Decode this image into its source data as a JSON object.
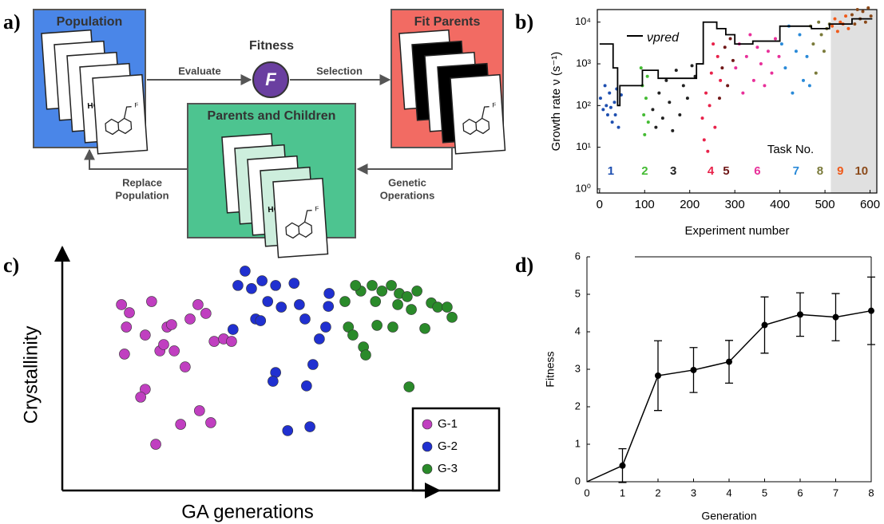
{
  "diagram": {
    "label": "a)",
    "population": "Population",
    "fitness": "Fitness",
    "fitness_symbol": "F",
    "fit_parents": "Fit Parents",
    "parents_children": "Parents and Children",
    "evaluate": "Evaluate",
    "selection": "Selection",
    "genetic_operations": [
      "Genetic",
      "Operations"
    ],
    "replace_population": [
      "Replace",
      "Population"
    ],
    "molecule_labels": [
      "HO",
      "F"
    ]
  },
  "chart_data": [
    {
      "type": "scatter",
      "label": "b)",
      "ylabel": "Growth rate ν (s⁻¹)",
      "xlabel": "Experiment number",
      "annotation": "Task No.",
      "log_y": true,
      "xlim": [
        -5,
        615
      ],
      "ylim": [
        0.8,
        20000
      ],
      "xticks": [
        0,
        100,
        200,
        300,
        400,
        500,
        600
      ],
      "yticks": [
        {
          "value": 1,
          "label": "10⁰"
        },
        {
          "value": 10,
          "label": "10¹"
        },
        {
          "value": 100,
          "label": "10²"
        },
        {
          "value": 1000,
          "label": "10³"
        },
        {
          "value": 10000,
          "label": "10⁴"
        }
      ],
      "highlight": [
        513,
        615
      ],
      "highlight_color": "#e0e0e0",
      "series": [
        {
          "name": "1",
          "color": "#1e4fb0",
          "x": [
            2,
            8,
            12,
            18,
            22,
            28,
            33,
            38,
            42,
            48,
            15,
            25,
            35
          ],
          "values": [
            150,
            80,
            300,
            60,
            200,
            40,
            120,
            250,
            30,
            180,
            100,
            90,
            60
          ]
        },
        {
          "name": "2",
          "color": "#44bb33",
          "x": [
            92,
            95,
            98,
            100,
            103,
            106,
            108
          ],
          "values": [
            800,
            300,
            60,
            20,
            150,
            500,
            40
          ]
        },
        {
          "name": "3",
          "color": "#222222",
          "x": [
            118,
            125,
            132,
            140,
            148,
            155,
            162,
            170,
            178,
            186,
            195,
            205,
            212
          ],
          "values": [
            80,
            30,
            200,
            50,
            400,
            120,
            25,
            700,
            60,
            300,
            150,
            900,
            500
          ]
        },
        {
          "name": "4",
          "color": "#e8224a",
          "x": [
            228,
            232,
            236,
            240,
            244,
            248,
            252,
            256,
            262,
            268
          ],
          "values": [
            50,
            15,
            200,
            8,
            100,
            600,
            3000,
            30,
            1500,
            400
          ]
        },
        {
          "name": "5",
          "color": "#701818",
          "x": [
            266,
            272,
            278,
            284,
            290,
            296
          ],
          "values": [
            150,
            800,
            2500,
            300,
            4000,
            1200
          ]
        },
        {
          "name": "6",
          "color": "#e8309a",
          "x": [
            302,
            310,
            318,
            326,
            334,
            342,
            350,
            358,
            366,
            374,
            382,
            390,
            398
          ],
          "values": [
            800,
            3000,
            200,
            1500,
            5000,
            400,
            2500,
            1000,
            300,
            2000,
            600,
            4000,
            1500
          ]
        },
        {
          "name": "7",
          "color": "#2a8ad8",
          "x": [
            404,
            412,
            420,
            428,
            436,
            444,
            452,
            460,
            466
          ],
          "values": [
            3000,
            800,
            8000,
            200,
            2000,
            5000,
            400,
            1500,
            300
          ]
        },
        {
          "name": "8",
          "color": "#7a7a3a",
          "x": [
            468,
            474,
            480,
            486,
            492,
            498,
            504,
            510
          ],
          "values": [
            8000,
            3000,
            600,
            10000,
            5000,
            2000,
            7000,
            9000
          ]
        },
        {
          "name": "9",
          "color": "#f05a1a",
          "x": [
            516,
            522,
            528,
            534,
            540,
            546,
            552
          ],
          "values": [
            8000,
            12000,
            6000,
            10000,
            9000,
            14000,
            7000
          ]
        },
        {
          "name": "10",
          "color": "#8b4a1a",
          "x": [
            560,
            566,
            572,
            578,
            584,
            590,
            596,
            602
          ],
          "values": [
            15000,
            9000,
            20000,
            12000,
            18000,
            10000,
            22000,
            14000
          ]
        }
      ],
      "line": {
        "name": "νpred",
        "color": "#000000",
        "x": [
          0,
          30,
          30,
          40,
          40,
          45,
          45,
          95,
          95,
          130,
          130,
          215,
          215,
          230,
          230,
          260,
          260,
          280,
          280,
          300,
          300,
          340,
          340,
          400,
          400,
          470,
          470,
          510,
          510,
          560,
          560,
          605
        ],
        "values": [
          3000,
          3000,
          800,
          800,
          100,
          100,
          300,
          300,
          700,
          700,
          450,
          450,
          1000,
          1000,
          10000,
          10000,
          7000,
          7000,
          5000,
          5000,
          3000,
          3000,
          3500,
          3500,
          8000,
          8000,
          7000,
          7000,
          9000,
          9000,
          12000,
          12000
        ]
      }
    },
    {
      "type": "scatter",
      "label": "c)",
      "ylabel": "Crystallinity",
      "xlabel": "GA generations",
      "xlim": [
        0,
        100
      ],
      "ylim": [
        0,
        100
      ],
      "series": [
        {
          "name": "G-1",
          "color": "#c03fc0",
          "x": [
            15.7,
            17.8,
            23.7,
            17.0,
            22.0,
            27.8,
            29.0,
            33.9,
            36.0,
            38.1,
            25.9,
            26.9,
            29.7,
            32.6,
            16.5,
            22.0,
            20.8,
            31.4,
            36.4,
            39.4,
            24.8,
            40.3,
            42.8,
            44.9
          ],
          "values": [
            76.4,
            73.1,
            77.7,
            67.2,
            63.9,
            67.2,
            68.2,
            70.5,
            76.4,
            72.8,
            57.4,
            60.0,
            57.4,
            50.8,
            56.1,
            41.6,
            38.4,
            27.2,
            32.8,
            27.9,
            19.0,
            61.3,
            62.3,
            61.3
          ]
        },
        {
          "name": "G-2",
          "color": "#2030d0",
          "x": [
            48.5,
            46.6,
            50.2,
            53.0,
            56.6,
            61.5,
            54.5,
            58.1,
            62.9,
            64.4,
            51.3,
            52.6,
            45.3,
            69.9,
            68.2,
            56.6,
            55.9,
            64.8,
            66.5,
            59.8,
            65.7,
            70.8,
            70.6
          ],
          "values": [
            90.2,
            84.3,
            83.0,
            86.2,
            84.3,
            85.2,
            77.7,
            75.4,
            76.4,
            70.5,
            70.5,
            69.8,
            66.2,
            67.2,
            62.3,
            48.5,
            44.9,
            43.0,
            51.8,
            24.6,
            26.2,
            81.0,
            75.7
          ]
        },
        {
          "name": "G-3",
          "color": "#2a8a2a",
          "x": [
            75.0,
            79.2,
            82.2,
            84.8,
            87.3,
            89.4,
            91.5,
            94.1,
            97.9,
            99.6,
            102.1,
            103.4,
            92.6,
            89.0,
            83.1,
            75.9,
            77.1,
            79.9,
            80.5,
            83.5,
            87.7,
            96.2,
            92.0,
            77.8
          ],
          "values": [
            77.7,
            82.0,
            84.3,
            82.0,
            84.3,
            81.0,
            79.7,
            82.0,
            77.1,
            75.4,
            75.4,
            71.2,
            74.4,
            76.4,
            77.7,
            67.2,
            63.9,
            59.0,
            55.7,
            67.9,
            67.2,
            66.6,
            42.6,
            84.3
          ]
        }
      ]
    },
    {
      "type": "line",
      "label": "d)",
      "ylabel": "Fitness",
      "xlabel": "Generation",
      "xlim": [
        0,
        8
      ],
      "ylim": [
        0,
        6
      ],
      "xticks": [
        0,
        1,
        2,
        3,
        4,
        5,
        6,
        7,
        8
      ],
      "yticks": [
        0,
        1,
        2,
        3,
        4,
        5,
        6
      ],
      "color": "#000000",
      "x": [
        0,
        1,
        2,
        3,
        4,
        5,
        6,
        7,
        8
      ],
      "values": [
        0,
        0.43,
        2.83,
        2.98,
        3.2,
        4.18,
        4.46,
        4.39,
        4.56
      ],
      "errors": [
        null,
        0.45,
        0.93,
        0.6,
        0.57,
        0.75,
        0.58,
        0.63,
        0.9
      ]
    }
  ]
}
